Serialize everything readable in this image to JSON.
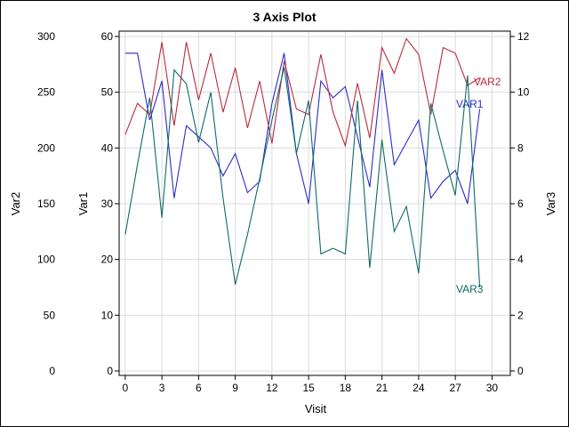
{
  "chart_data": {
    "type": "line",
    "title": "3 Axis Plot",
    "xlabel": "Visit",
    "x": [
      0,
      1,
      2,
      3,
      4,
      5,
      6,
      7,
      8,
      9,
      10,
      11,
      12,
      13,
      14,
      15,
      16,
      17,
      18,
      19,
      20,
      21,
      22,
      23,
      24,
      25,
      26,
      27,
      28,
      29
    ],
    "xlim": [
      -0.5,
      31.5
    ],
    "xticks": [
      0,
      3,
      6,
      9,
      12,
      15,
      18,
      21,
      24,
      27,
      30
    ],
    "grid": true,
    "axes": {
      "var1": {
        "label": "Var1",
        "side": "left-inner",
        "ylim": [
          0,
          60
        ],
        "ticks": [
          0,
          10,
          20,
          30,
          40,
          50,
          60
        ]
      },
      "var2": {
        "label": "Var2",
        "side": "left-outer",
        "ylim": [
          0,
          300
        ],
        "ticks": [
          0,
          50,
          100,
          150,
          200,
          250,
          300
        ]
      },
      "var3": {
        "label": "Var3",
        "side": "right",
        "ylim": [
          0,
          12
        ],
        "ticks": [
          0,
          2,
          4,
          6,
          8,
          10,
          12
        ]
      }
    },
    "series": [
      {
        "name": "VAR1",
        "axis": "var1",
        "color": "#2b2bcc",
        "values": [
          57,
          57,
          45,
          52,
          31,
          44,
          42,
          40,
          35,
          39,
          32,
          34,
          48,
          57,
          39,
          30,
          52,
          49,
          51,
          42,
          33,
          54,
          37,
          41,
          45,
          31,
          34,
          36,
          30,
          47
        ]
      },
      {
        "name": "VAR2",
        "axis": "var2",
        "color": "#b82b3f",
        "values": [
          212,
          240,
          230,
          295,
          220,
          295,
          243,
          285,
          232,
          272,
          218,
          260,
          204,
          278,
          235,
          230,
          284,
          232,
          202,
          258,
          209,
          290,
          267,
          298,
          284,
          230,
          290,
          285,
          256,
          263
        ]
      },
      {
        "name": "VAR3",
        "axis": "var3",
        "color": "#0e6b66",
        "values": [
          4.9,
          7.4,
          9.8,
          5.5,
          10.8,
          10.3,
          8.2,
          10.0,
          6.2,
          3.1,
          4.9,
          6.9,
          9.0,
          10.9,
          7.8,
          9.7,
          4.2,
          4.4,
          4.2,
          9.7,
          3.7,
          8.3,
          5.0,
          5.9,
          3.5,
          9.6,
          7.9,
          6.3,
          10.6,
          3.0
        ]
      }
    ]
  }
}
